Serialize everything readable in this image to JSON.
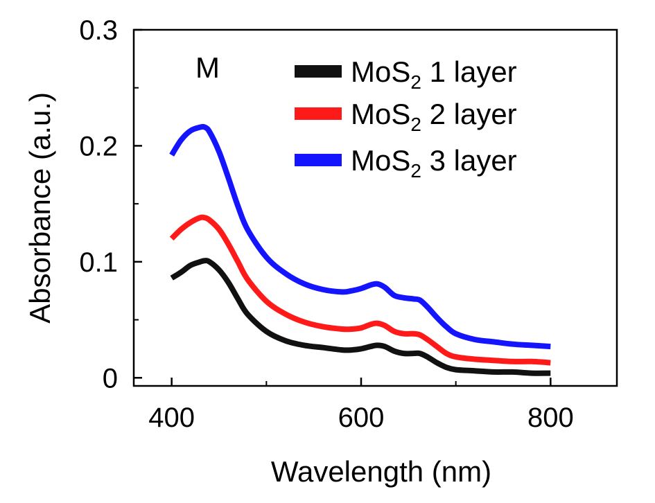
{
  "chart_data": {
    "type": "line",
    "panel_label": "M",
    "xlabel": "Wavelength (nm)",
    "ylabel": "Absorbance (a.u.)",
    "xlim": [
      360,
      870
    ],
    "ylim": [
      -0.007,
      0.3
    ],
    "x_ticks": [
      400,
      600,
      800
    ],
    "x_tick_labels": [
      "400",
      "600",
      "800"
    ],
    "y_ticks": [
      0,
      0.1,
      0.2,
      0.3
    ],
    "y_tick_labels": [
      "0",
      "0.1",
      "0.2",
      "0.3"
    ],
    "grid": false,
    "legend_position": "top-right",
    "series": [
      {
        "name": "MoS2 1 layer",
        "label_main": "MoS",
        "label_sub": "2",
        "label_tail": " 1 layer",
        "color": "#111111",
        "x": [
          400,
          410,
          420,
          430,
          435,
          440,
          450,
          460,
          470,
          480,
          500,
          520,
          540,
          560,
          580,
          590,
          600,
          610,
          617,
          625,
          635,
          645,
          655,
          662,
          670,
          680,
          690,
          700,
          720,
          740,
          760,
          780,
          800
        ],
        "y": [
          0.086,
          0.091,
          0.097,
          0.1,
          0.101,
          0.1,
          0.093,
          0.082,
          0.068,
          0.055,
          0.04,
          0.032,
          0.028,
          0.026,
          0.024,
          0.024,
          0.025,
          0.027,
          0.028,
          0.027,
          0.023,
          0.021,
          0.021,
          0.021,
          0.018,
          0.013,
          0.009,
          0.007,
          0.006,
          0.005,
          0.005,
          0.004,
          0.004
        ]
      },
      {
        "name": "MoS2 2 layer",
        "label_main": "MoS",
        "label_sub": "2",
        "label_tail": " 2 layer",
        "color": "#ff1a1a",
        "x": [
          400,
          410,
          420,
          430,
          435,
          440,
          450,
          460,
          470,
          480,
          500,
          520,
          540,
          560,
          580,
          590,
          600,
          610,
          617,
          625,
          635,
          645,
          655,
          662,
          670,
          680,
          690,
          700,
          720,
          740,
          760,
          780,
          800
        ],
        "y": [
          0.12,
          0.128,
          0.134,
          0.138,
          0.138,
          0.136,
          0.128,
          0.115,
          0.1,
          0.085,
          0.066,
          0.055,
          0.048,
          0.044,
          0.042,
          0.042,
          0.043,
          0.046,
          0.047,
          0.045,
          0.04,
          0.038,
          0.038,
          0.037,
          0.033,
          0.027,
          0.021,
          0.018,
          0.016,
          0.015,
          0.014,
          0.014,
          0.013
        ]
      },
      {
        "name": "MoS2 3 layer",
        "label_main": "MoS",
        "label_sub": "2",
        "label_tail": " 3 layer",
        "color": "#1414ff",
        "x": [
          400,
          410,
          420,
          430,
          435,
          440,
          450,
          460,
          470,
          480,
          500,
          520,
          540,
          560,
          580,
          590,
          600,
          610,
          617,
          625,
          635,
          645,
          655,
          662,
          670,
          680,
          690,
          700,
          720,
          740,
          760,
          780,
          800
        ],
        "y": [
          0.192,
          0.205,
          0.213,
          0.216,
          0.216,
          0.212,
          0.195,
          0.172,
          0.148,
          0.128,
          0.104,
          0.09,
          0.081,
          0.076,
          0.074,
          0.075,
          0.077,
          0.08,
          0.081,
          0.078,
          0.071,
          0.069,
          0.068,
          0.067,
          0.061,
          0.052,
          0.044,
          0.038,
          0.033,
          0.031,
          0.029,
          0.028,
          0.027
        ]
      }
    ]
  }
}
